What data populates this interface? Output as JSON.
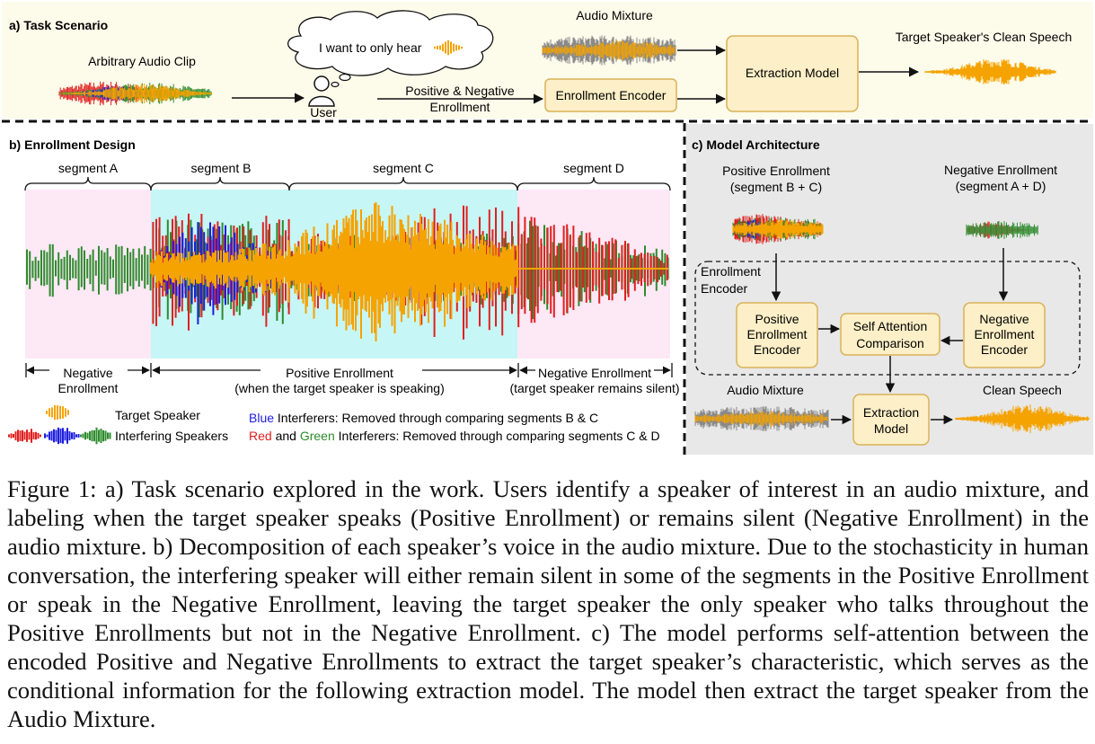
{
  "colors": {
    "target": "#f5a300",
    "blue": "#1d1de0",
    "red": "#e02020",
    "green": "#2e8b2e",
    "grey": "#8a8a8a",
    "panel_a_bg": "#fdfbea",
    "box_fill": "#fdefc7",
    "box_stroke": "#d9b25a",
    "panel_c_bg": "#e8e8e8",
    "pink": "#fde8f6",
    "cyan": "#c7f6f6"
  },
  "panel_a": {
    "title": "a) Task Scenario",
    "arbitrary_clip": "Arbitrary Audio Clip",
    "thought": "I want to only hear",
    "user": "User",
    "audio_mixture": "Audio Mixture",
    "pos_neg_line1": "Positive & Negative",
    "pos_neg_line2": "Enrollment",
    "enrollment_encoder": "Enrollment Encoder",
    "extraction_model": "Extraction Model",
    "target_clean": "Target Speaker's Clean Speech"
  },
  "panel_b": {
    "title": "b) Enrollment Design",
    "segments": [
      "segment A",
      "segment B",
      "segment C",
      "segment D"
    ],
    "neg_left_1": "Negative",
    "neg_left_2": "Enrollment",
    "pos_1": "Positive Enrollment",
    "pos_2": "(when the target speaker is speaking)",
    "neg_right_1": "Negative Enrollment",
    "neg_right_2": "(target speaker remains silent)",
    "legend_target": "Target Speaker",
    "legend_interfering": "Interfering Speakers",
    "note1_colored": "Blue",
    "note1_rest": " Interferers: Removed through comparing segments B & C",
    "note2_red": "Red",
    "note2_and": " and ",
    "note2_green": "Green",
    "note2_rest": " Interferers: Removed through comparing segments C & D"
  },
  "panel_c": {
    "title": "c) Model Architecture",
    "pos_enroll_1": "Positive Enrollment",
    "pos_enroll_2": "(segment B + C)",
    "neg_enroll_1": "Negative Enrollment",
    "neg_enroll_2": "(segment A + D)",
    "encoder_label_1": "Enrollment",
    "encoder_label_2": "Encoder",
    "pos_encoder": [
      "Positive",
      "Enrollment",
      "Encoder"
    ],
    "self_attention": [
      "Self Attention",
      "Comparison"
    ],
    "neg_encoder": [
      "Negative",
      "Enrollment",
      "Encoder"
    ],
    "audio_mixture": "Audio Mixture",
    "clean_speech": "Clean Speech",
    "extraction": [
      "Extraction",
      "Model"
    ]
  },
  "caption": "Figure 1: a) Task scenario explored in the work. Users identify a speaker of interest in an audio mixture, and labeling when the target speaker speaks (Positive Enrollment) or remains silent (Negative Enrollment) in the audio mixture. b) Decomposition of each speaker’s voice in the audio mixture. Due to the stochasticity in human conversation, the interfering speaker will either remain silent in some of the segments in the Positive Enrollment or speak in the Negative Enrollment, leaving the target speaker the only speaker who talks throughout the Positive Enrollments but not in the Negative Enrollment. c) The model performs self-attention between the encoded Positive and Negative Enrollments to extract the target speaker’s characteristic, which serves as the conditional information for the following extraction model. The model then extract the target speaker from the Audio Mixture."
}
